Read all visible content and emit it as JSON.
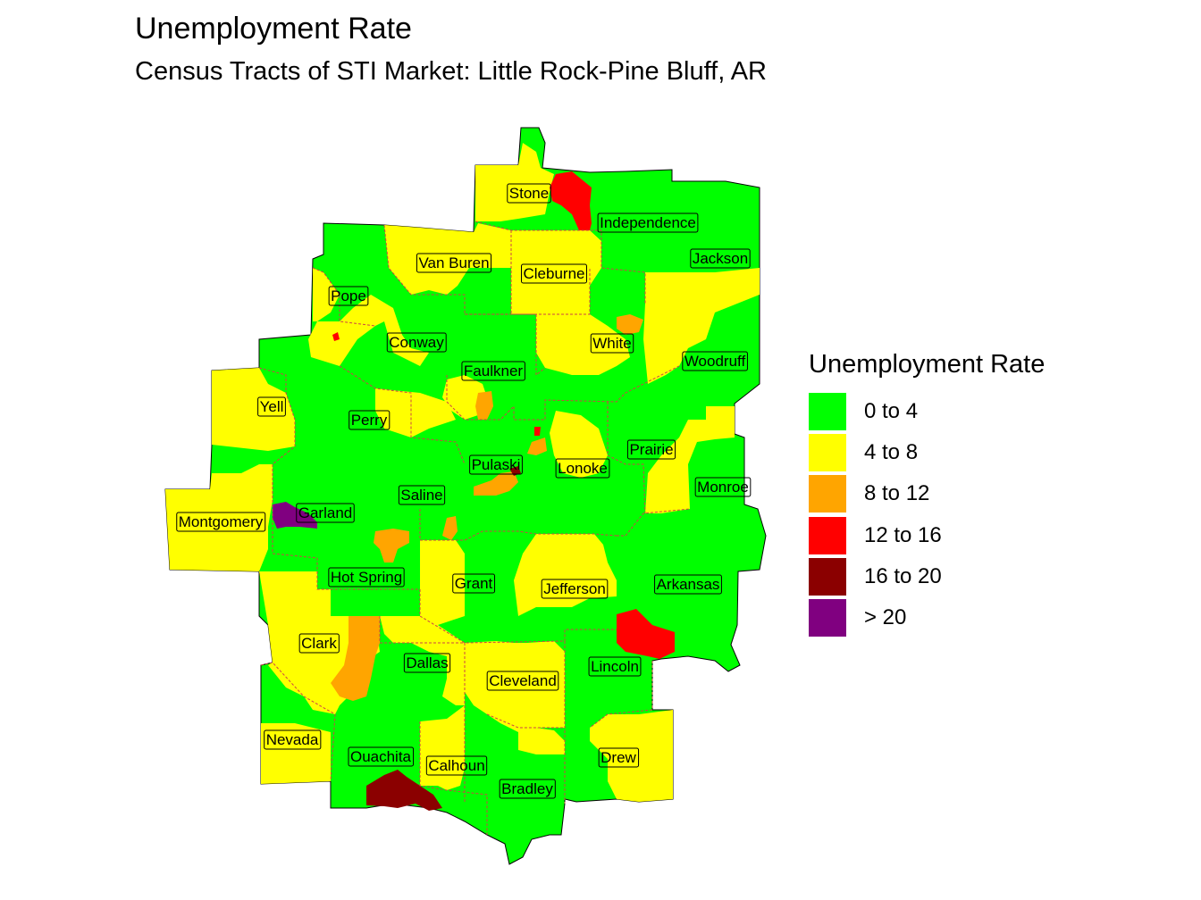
{
  "map": {
    "title": "Unemployment Rate",
    "subtitle": "Census Tracts of STI Market: Little Rock-Pine Bluff, AR",
    "counties": [
      "Stone",
      "Independence",
      "Van Buren",
      "Cleburne",
      "Jackson",
      "Pope",
      "Conway",
      "White",
      "Woodruff",
      "Faulkner",
      "Yell",
      "Perry",
      "Prairie",
      "Pulaski",
      "Lonoke",
      "Monroe",
      "Saline",
      "Garland",
      "Montgomery",
      "Hot Spring",
      "Grant",
      "Jefferson",
      "Arkansas",
      "Clark",
      "Dallas",
      "Lincoln",
      "Cleveland",
      "Nevada",
      "Ouachita",
      "Calhoun",
      "Drew",
      "Bradley"
    ]
  },
  "legend": {
    "title": "Unemployment Rate",
    "items": [
      {
        "label": "0 to 4",
        "color": "#00FF00"
      },
      {
        "label": "4 to 8",
        "color": "#FFFF00"
      },
      {
        "label": "8 to 12",
        "color": "#FFA500"
      },
      {
        "label": "12 to 16",
        "color": "#FF0000"
      },
      {
        "label": "16 to 20",
        "color": "#8B0000"
      },
      {
        "label": "> 20",
        "color": "#800080"
      }
    ]
  },
  "colors": {
    "low": "#00FF00",
    "mid": "#FFFF00",
    "high": "#FFA500",
    "veryhigh": "#FF0000",
    "severe": "#8B0000",
    "extreme": "#800080",
    "boundary": "#CC4444"
  }
}
